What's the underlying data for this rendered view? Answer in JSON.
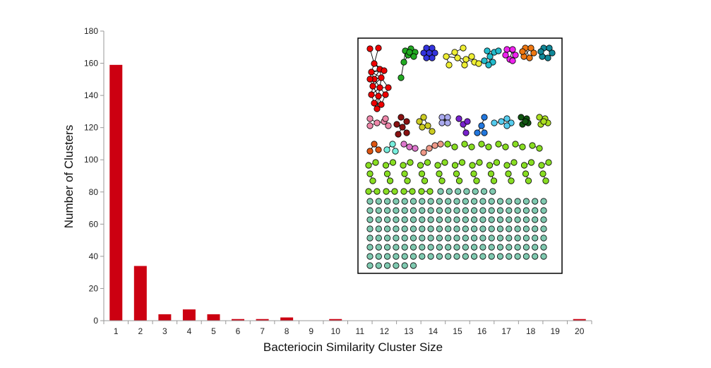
{
  "chart_data": {
    "type": "bar",
    "title": "",
    "xlabel": "Bacteriocin Similarity Cluster Size",
    "ylabel": "Number of Clusters",
    "ylim": [
      0,
      180
    ],
    "yticks": [
      0,
      20,
      40,
      60,
      80,
      100,
      120,
      140,
      160,
      180
    ],
    "categories": [
      "1",
      "2",
      "3",
      "4",
      "5",
      "6",
      "7",
      "8",
      "9",
      "10",
      "11",
      "12",
      "13",
      "14",
      "15",
      "16",
      "17",
      "18",
      "19",
      "20"
    ],
    "values": [
      159,
      34,
      4,
      7,
      4,
      1,
      1,
      2,
      0,
      1,
      0,
      0,
      0,
      0,
      0,
      0,
      0,
      0,
      0,
      1
    ],
    "bar_color": "#cc0011",
    "grid": false,
    "inset": {
      "description": "network of bacteriocin similarity clusters",
      "border_color": "#000000",
      "node_outline_color": "#000000",
      "singleton_color": "#7fc9b0",
      "pair_color": "#88dd22",
      "cluster_colors": [
        "#ee0000",
        "#22aa22",
        "#3333dd",
        "#eeee33",
        "#22bbcc",
        "#ee22ee",
        "#ee7711",
        "#118899",
        "#ee88aa",
        "#881111",
        "#cccc22",
        "#aaaaee",
        "#7722cc",
        "#2277dd",
        "#55ccee",
        "#115511",
        "#aadd22",
        "#dd5511",
        "#77eedd",
        "#dd77cc",
        "#ee9988"
      ]
    }
  }
}
